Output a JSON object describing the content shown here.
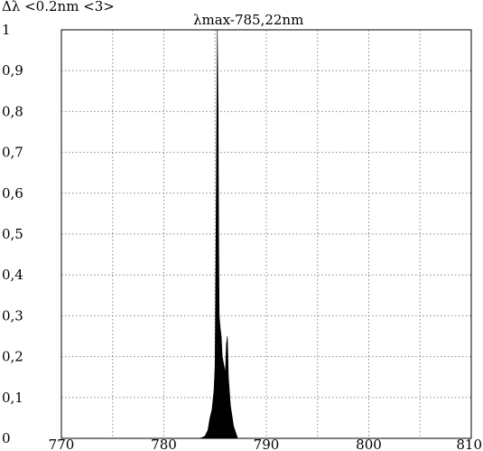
{
  "header": {
    "resolution_text": "Δλ  <0.2nm   <3>",
    "peak_label": "λmax-785,22nm"
  },
  "chart_data": {
    "type": "area",
    "title": "",
    "xlabel": "",
    "ylabel": "",
    "xlim": [
      770,
      810
    ],
    "ylim": [
      0,
      1
    ],
    "x_ticks": [
      "770",
      "780",
      "790",
      "800",
      "810"
    ],
    "y_ticks": [
      "0",
      "0,1",
      "0,2",
      "0,3",
      "0,4",
      "0,5",
      "0,6",
      "0,7",
      "0,8",
      "0,9",
      "1"
    ],
    "grid": true,
    "series": [
      {
        "values": [
          [
            783.5,
            0.0
          ],
          [
            784.0,
            0.005
          ],
          [
            784.3,
            0.02
          ],
          [
            784.5,
            0.05
          ],
          [
            784.7,
            0.07
          ],
          [
            784.9,
            0.12
          ],
          [
            785.0,
            0.18
          ],
          [
            785.05,
            0.35
          ],
          [
            785.1,
            0.55
          ],
          [
            785.15,
            0.75
          ],
          [
            785.2,
            0.93
          ],
          [
            785.22,
            1.0
          ],
          [
            785.26,
            0.9
          ],
          [
            785.3,
            0.8
          ],
          [
            785.35,
            0.5
          ],
          [
            785.4,
            0.3
          ],
          [
            785.5,
            0.27
          ],
          [
            785.6,
            0.25
          ],
          [
            785.7,
            0.2
          ],
          [
            785.85,
            0.18
          ],
          [
            786.0,
            0.16
          ],
          [
            786.1,
            0.23
          ],
          [
            786.2,
            0.25
          ],
          [
            786.3,
            0.15
          ],
          [
            786.5,
            0.08
          ],
          [
            786.8,
            0.03
          ],
          [
            787.2,
            0.0
          ]
        ]
      }
    ]
  }
}
